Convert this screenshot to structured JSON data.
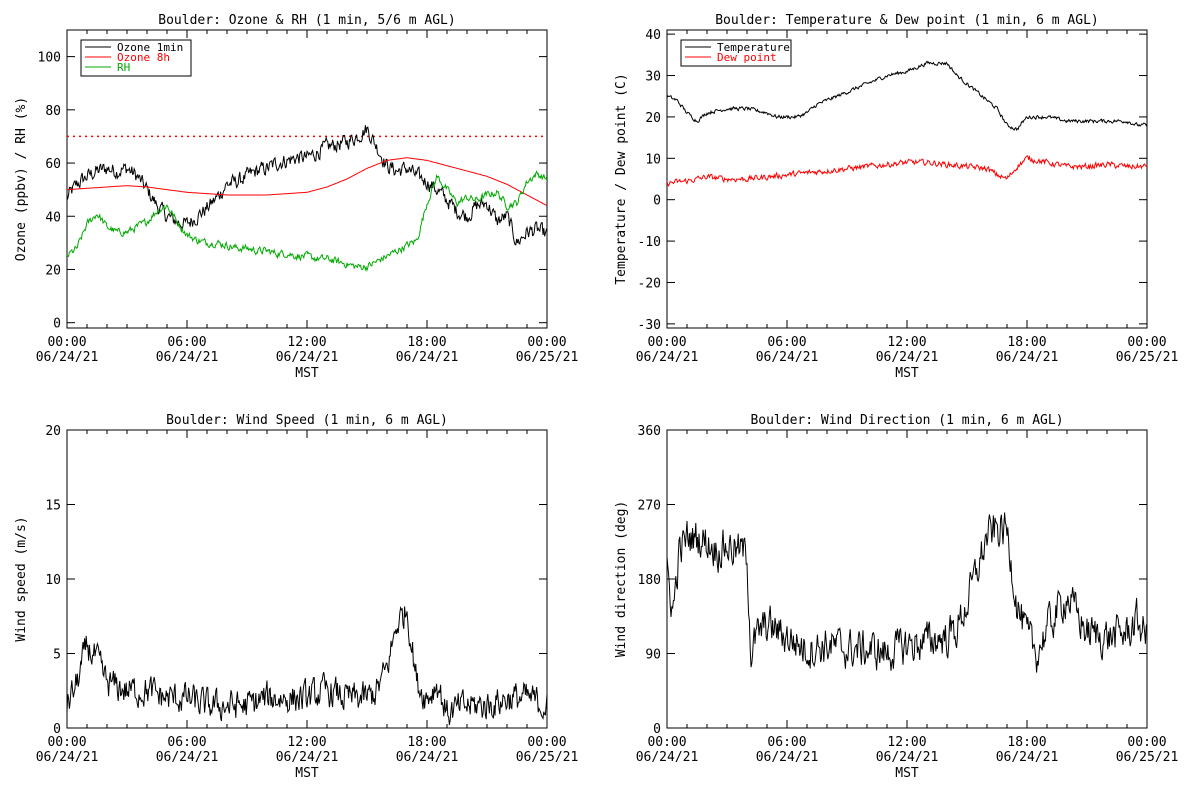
{
  "colors": {
    "black": "#000000",
    "red": "#ff0000",
    "green": "#00aa00",
    "ref_line": "#ff0000"
  },
  "chart_data": [
    {
      "type": "line",
      "title": "Boulder: Ozone & RH (1 min, 5/6 m AGL)",
      "xlabel": "MST",
      "ylabel": "Ozone (ppbv) / RH (%)",
      "x_ticks": [
        {
          "time": "00:00",
          "date": "06/24/21"
        },
        {
          "time": "06:00",
          "date": "06/24/21"
        },
        {
          "time": "12:00",
          "date": "06/24/21"
        },
        {
          "time": "18:00",
          "date": "06/24/21"
        },
        {
          "time": "00:00",
          "date": "06/25/21"
        }
      ],
      "xlim": [
        0,
        24
      ],
      "ylim": [
        -2,
        110
      ],
      "y_ticks": [
        0,
        20,
        40,
        60,
        80,
        100
      ],
      "reference_line": {
        "y": 70,
        "style": "dotted",
        "color": "#ff0000"
      },
      "legend": {
        "position": "top-left",
        "entries": [
          {
            "label": "Ozone 1min",
            "color": "#000000"
          },
          {
            "label": "Ozone 8h",
            "color": "#ff0000"
          },
          {
            "label": "RH",
            "color": "#00aa00"
          }
        ]
      },
      "series": [
        {
          "name": "Ozone 1min",
          "color": "#000000",
          "noise": 2.5,
          "x": [
            0,
            0.5,
            1,
            1.5,
            2,
            2.5,
            3,
            3.5,
            4,
            4.5,
            5,
            5.5,
            6,
            6.5,
            7,
            7.5,
            8,
            8.5,
            9,
            9.5,
            10,
            10.5,
            11,
            11.5,
            12,
            12.5,
            13,
            13.5,
            14,
            14.5,
            15,
            15.5,
            16,
            16.5,
            17,
            17.5,
            18,
            18.5,
            19,
            19.5,
            20,
            20.5,
            21,
            21.5,
            22,
            22.5,
            23,
            23.5,
            24
          ],
          "values": [
            47,
            52,
            55,
            57,
            58,
            57,
            58,
            55,
            50,
            44,
            40,
            38,
            37,
            40,
            43,
            47,
            52,
            53,
            55,
            57,
            58,
            60,
            61,
            62,
            62,
            64,
            66,
            67,
            68,
            70,
            73,
            66,
            59,
            57,
            58,
            55,
            53,
            50,
            46,
            42,
            40,
            44,
            45,
            38,
            40,
            30,
            34,
            35,
            33
          ]
        },
        {
          "name": "Ozone 8h",
          "color": "#ff0000",
          "noise": 0,
          "x": [
            0,
            1,
            2,
            3,
            4,
            5,
            6,
            7,
            8,
            9,
            10,
            11,
            12,
            13,
            14,
            15,
            16,
            17,
            18,
            19,
            20,
            21,
            22,
            23,
            24
          ],
          "values": [
            50,
            50.5,
            51,
            51.5,
            51,
            50,
            49,
            48.5,
            48,
            48,
            48,
            48.5,
            49,
            51,
            54,
            58,
            61,
            62,
            61,
            59,
            57,
            55,
            52,
            48,
            44
          ]
        },
        {
          "name": "RH",
          "color": "#00aa00",
          "noise": 1.2,
          "x": [
            0,
            0.5,
            1,
            1.5,
            2,
            2.5,
            3,
            3.5,
            4,
            4.5,
            5,
            5.5,
            6,
            6.5,
            7,
            7.5,
            8,
            8.5,
            9,
            9.5,
            10,
            10.5,
            11,
            11.5,
            12,
            12.5,
            13,
            13.5,
            14,
            14.5,
            15,
            15.5,
            16,
            16.5,
            17,
            17.5,
            18,
            18.5,
            19,
            19.5,
            20,
            20.5,
            21,
            21.5,
            22,
            22.5,
            23,
            23.5,
            24
          ],
          "values": [
            25,
            28,
            37,
            41,
            36,
            34,
            34,
            36,
            38,
            42,
            44,
            38,
            33,
            31,
            30,
            30,
            29,
            28,
            28,
            27,
            27,
            26,
            26,
            25,
            25,
            24,
            24,
            23,
            22,
            21,
            21,
            23,
            25,
            27,
            29,
            31,
            45,
            55,
            50,
            45,
            47,
            46,
            48,
            49,
            44,
            45,
            53,
            56,
            54
          ]
        }
      ]
    },
    {
      "type": "line",
      "title": "Boulder: Temperature & Dew point (1 min, 6 m AGL)",
      "xlabel": "MST",
      "ylabel": "Temperature / Dew point (C)",
      "x_ticks": [
        {
          "time": "00:00",
          "date": "06/24/21"
        },
        {
          "time": "06:00",
          "date": "06/24/21"
        },
        {
          "time": "12:00",
          "date": "06/24/21"
        },
        {
          "time": "18:00",
          "date": "06/24/21"
        },
        {
          "time": "00:00",
          "date": "06/25/21"
        }
      ],
      "xlim": [
        0,
        24
      ],
      "ylim": [
        -31,
        41
      ],
      "y_ticks": [
        -30,
        -20,
        -10,
        0,
        10,
        20,
        30,
        40
      ],
      "legend": {
        "position": "top-left",
        "entries": [
          {
            "label": "Temperature",
            "color": "#000000"
          },
          {
            "label": "Dew point",
            "color": "#ff0000"
          }
        ]
      },
      "series": [
        {
          "name": "Temperature",
          "color": "#000000",
          "noise": 0.4,
          "x": [
            0,
            0.5,
            1,
            1.5,
            2,
            3,
            4,
            5,
            5.5,
            6,
            6.5,
            7,
            7.5,
            8,
            8.5,
            9,
            10,
            11,
            12,
            12.5,
            13,
            13.5,
            14,
            14.5,
            15,
            15.5,
            16,
            16.5,
            17,
            17.5,
            18,
            18.5,
            19,
            20,
            21,
            22,
            23,
            23.5,
            24
          ],
          "values": [
            25,
            24,
            21,
            19,
            21,
            22,
            22,
            21,
            20,
            20,
            20,
            21,
            23,
            24,
            25,
            26,
            28,
            30,
            31,
            32,
            33,
            33,
            33,
            30,
            28,
            26,
            24,
            22,
            18,
            17,
            20,
            20,
            20,
            19,
            19,
            19,
            19,
            18,
            18
          ]
        },
        {
          "name": "Dew point",
          "color": "#ff0000",
          "noise": 0.6,
          "x": [
            0,
            1,
            2,
            3,
            4,
            5,
            6,
            7,
            8,
            9,
            10,
            11,
            12,
            13,
            14,
            15,
            16,
            16.5,
            17,
            17.5,
            18,
            19,
            20,
            21,
            22,
            23,
            24
          ],
          "values": [
            4,
            4.5,
            5.5,
            5,
            5,
            5.5,
            6,
            6.5,
            7,
            7.5,
            8,
            8.5,
            9,
            9,
            8.5,
            8,
            7.5,
            6,
            5,
            8,
            10,
            9,
            8,
            8,
            8.5,
            8,
            8
          ]
        }
      ]
    },
    {
      "type": "line",
      "title": "Boulder: Wind Speed (1 min, 6 m AGL)",
      "xlabel": "MST",
      "ylabel": "Wind speed (m/s)",
      "x_ticks": [
        {
          "time": "00:00",
          "date": "06/24/21"
        },
        {
          "time": "06:00",
          "date": "06/24/21"
        },
        {
          "time": "12:00",
          "date": "06/24/21"
        },
        {
          "time": "18:00",
          "date": "06/24/21"
        },
        {
          "time": "00:00",
          "date": "06/25/21"
        }
      ],
      "xlim": [
        0,
        24
      ],
      "ylim": [
        0,
        20
      ],
      "y_ticks": [
        0,
        5,
        10,
        15,
        20
      ],
      "series": [
        {
          "name": "",
          "color": "#000000",
          "noise": 0.9,
          "x": [
            0,
            0.5,
            1,
            1.5,
            2,
            3,
            4,
            5,
            6,
            7,
            8,
            9,
            10,
            11,
            12,
            13,
            14,
            15,
            15.5,
            16,
            16.5,
            17,
            17.5,
            18,
            18.5,
            19,
            20,
            21,
            22,
            23,
            24
          ],
          "values": [
            1.5,
            3,
            5.5,
            4.5,
            3,
            2.5,
            2.5,
            2,
            2,
            1.5,
            1.5,
            1.5,
            2,
            2,
            2,
            2.5,
            2,
            2,
            2.5,
            4,
            7,
            8,
            3,
            2,
            3,
            1,
            1.5,
            1.5,
            2,
            2,
            1.5
          ]
        }
      ]
    },
    {
      "type": "line",
      "title": "Boulder: Wind Direction (1 min, 6 m AGL)",
      "xlabel": "MST",
      "ylabel": "Wind direction (deg)",
      "x_ticks": [
        {
          "time": "00:00",
          "date": "06/24/21"
        },
        {
          "time": "06:00",
          "date": "06/24/21"
        },
        {
          "time": "12:00",
          "date": "06/24/21"
        },
        {
          "time": "18:00",
          "date": "06/24/21"
        },
        {
          "time": "00:00",
          "date": "06/25/21"
        }
      ],
      "xlim": [
        0,
        24
      ],
      "ylim": [
        0,
        360
      ],
      "y_ticks": [
        0,
        90,
        180,
        270,
        360
      ],
      "series": [
        {
          "name": "",
          "color": "#000000",
          "noise": 20,
          "x": [
            0,
            0.3,
            0.6,
            1,
            1.5,
            2,
            2.5,
            3,
            3.5,
            4,
            4.2,
            4.5,
            5,
            6,
            7,
            8,
            9,
            10,
            11,
            12,
            13,
            14,
            14.5,
            15,
            16,
            16.5,
            17,
            17.5,
            18,
            18.5,
            19,
            20,
            21,
            22,
            23,
            23.5,
            24
          ],
          "values": [
            190,
            140,
            210,
            230,
            230,
            225,
            215,
            220,
            215,
            210,
            90,
            110,
            125,
            110,
            95,
            100,
            95,
            95,
            90,
            100,
            105,
            110,
            120,
            150,
            230,
            240,
            238,
            150,
            110,
            90,
            120,
            160,
            115,
            110,
            115,
            130,
            110
          ]
        }
      ]
    }
  ]
}
